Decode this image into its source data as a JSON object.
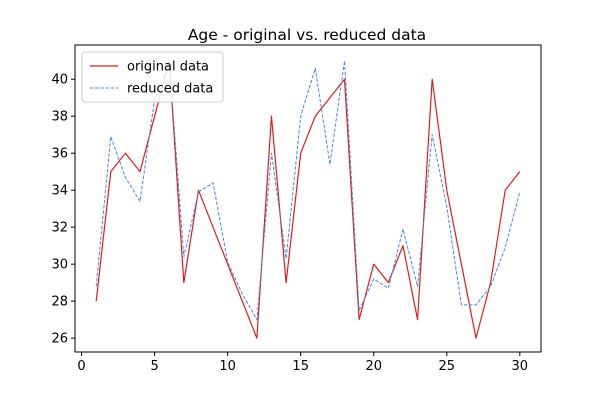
{
  "chart_data": {
    "type": "line",
    "title": "Age - original vs. reduced data",
    "xlabel": "",
    "ylabel": "",
    "xlim": [
      -0.45,
      31.45
    ],
    "ylim": [
      25.25,
      41.85
    ],
    "xticks": [
      0,
      5,
      10,
      15,
      20,
      25,
      30
    ],
    "yticks": [
      26,
      28,
      30,
      32,
      34,
      36,
      38,
      40
    ],
    "grid": false,
    "legend_position": "top-left",
    "x": [
      1,
      2,
      3,
      4,
      5,
      6,
      7,
      8,
      9,
      10,
      11,
      12,
      13,
      14,
      15,
      16,
      17,
      18,
      19,
      20,
      21,
      22,
      23,
      24,
      25,
      26,
      27,
      28,
      29,
      30
    ],
    "series": [
      {
        "name": "original data",
        "color": "#e31a1c",
        "style": "solid",
        "values": [
          28,
          35,
          36,
          35,
          38,
          41,
          29,
          34,
          32,
          30,
          28,
          26,
          38,
          29,
          36,
          38,
          39,
          40,
          27,
          30,
          29,
          31,
          27,
          40,
          34,
          30,
          26,
          29,
          34,
          35
        ]
      },
      {
        "name": "reduced data",
        "color": "#4a86e8",
        "style": "dashed",
        "values": [
          28.8,
          36.9,
          34.7,
          33.4,
          38.9,
          41.0,
          30.4,
          33.9,
          34.4,
          30.1,
          28.4,
          27.0,
          36.0,
          30.3,
          38.0,
          40.6,
          35.4,
          41.0,
          27.5,
          29.2,
          28.7,
          31.9,
          28.8,
          37.0,
          33.1,
          27.8,
          27.8,
          28.8,
          30.9,
          33.9
        ]
      }
    ]
  }
}
